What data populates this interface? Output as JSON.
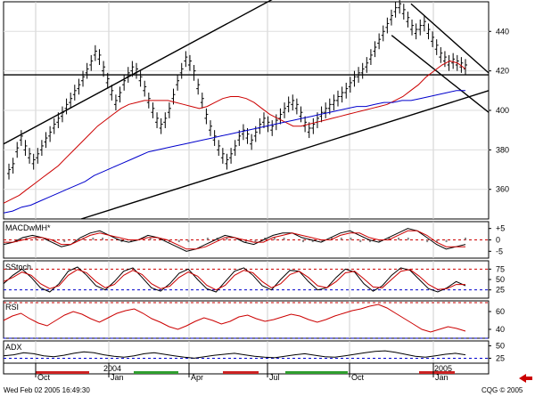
{
  "footer": {
    "datetime": "Wed Feb 02 2005 16:49:30",
    "copyright": "CQG © 2005"
  },
  "time_axis": {
    "month_labels": [
      "Oct",
      "Jan",
      "Apr",
      "Jul",
      "Oct",
      "Jan"
    ],
    "year_labels": [
      "2004",
      "2005"
    ]
  },
  "chart_data": [
    {
      "type": "line",
      "panel": "price",
      "ylim": [
        345,
        455
      ],
      "y_ticks": [
        {
          "value": 360,
          "label": "360"
        },
        {
          "value": 380,
          "label": "380"
        },
        {
          "value": 400,
          "label": "400"
        },
        {
          "value": 420,
          "label": "420"
        },
        {
          "value": 440,
          "label": "440"
        }
      ],
      "grid": true,
      "price_bars": [
        369,
        372,
        380,
        386,
        381,
        377,
        374,
        377,
        381,
        385,
        388,
        392,
        395,
        398,
        402,
        405,
        409,
        412,
        416,
        420,
        424,
        429,
        427,
        421,
        415,
        409,
        404,
        408,
        414,
        418,
        421,
        420,
        416,
        411,
        405,
        400,
        395,
        392,
        395,
        400,
        407,
        414,
        420,
        426,
        424,
        419,
        412,
        405,
        397,
        391,
        386,
        381,
        377,
        374,
        377,
        381,
        386,
        389,
        387,
        384,
        388,
        392,
        395,
        393,
        391,
        394,
        397,
        400,
        403,
        404,
        402,
        398,
        393,
        390,
        392,
        395,
        398,
        400,
        402,
        404,
        406,
        408,
        410,
        413,
        416,
        418,
        420,
        423,
        427,
        431,
        435,
        439,
        443,
        447,
        451,
        453,
        450,
        446,
        442,
        440,
        442,
        444,
        440,
        436,
        432,
        428,
        426,
        424,
        425,
        424,
        423,
        422
      ],
      "ma_fast": [
        353,
        355,
        357,
        360,
        363,
        366,
        369,
        372,
        376,
        380,
        384,
        388,
        392,
        395,
        398,
        401,
        403,
        404,
        405,
        405,
        405,
        405,
        404,
        403,
        402,
        401,
        402,
        404,
        406,
        407,
        407,
        406,
        404,
        401,
        398,
        396,
        394,
        392,
        392,
        393,
        394,
        395,
        396,
        397,
        398,
        399,
        400,
        401,
        402,
        403,
        405,
        407,
        410,
        413,
        417,
        420,
        423,
        425,
        424,
        421
      ],
      "ma_slow": [
        348,
        349,
        351,
        352,
        354,
        356,
        358,
        360,
        362,
        364,
        367,
        369,
        371,
        373,
        375,
        377,
        379,
        380,
        381,
        382,
        383,
        384,
        385,
        386,
        387,
        388,
        389,
        390,
        391,
        392,
        393,
        394,
        395,
        396,
        397,
        398,
        399,
        400,
        401,
        402,
        402,
        403,
        404,
        404,
        405,
        405,
        406,
        407,
        408,
        409,
        410,
        410
      ],
      "trendlines": [
        {
          "from": [
            0,
            418
          ],
          "to": [
            1,
            418
          ]
        },
        {
          "from": [
            0,
            383
          ],
          "to": [
            0.56,
            457
          ]
        },
        {
          "from": [
            0.16,
            345
          ],
          "to": [
            1,
            410
          ]
        },
        {
          "from": [
            0.84,
            454
          ],
          "to": [
            1,
            419
          ]
        },
        {
          "from": [
            0.8,
            438
          ],
          "to": [
            1,
            399
          ]
        }
      ]
    },
    {
      "type": "line",
      "panel": "macd",
      "name": "MACDwMH*",
      "ylim": [
        -8,
        8
      ],
      "y_ticks": [
        {
          "value": 5,
          "label": "+5"
        },
        {
          "value": 0,
          "label": "0"
        },
        {
          "value": -5,
          "label": "-5"
        }
      ],
      "guides": [
        {
          "value": 0,
          "color": "#cc0000",
          "dashed": true
        }
      ],
      "series": [
        {
          "color": "#000000",
          "values": [
            -2,
            -1,
            1,
            2,
            1,
            -1,
            -3,
            -2,
            1,
            3,
            4,
            2,
            0,
            -1,
            0,
            2,
            1,
            -1,
            -3,
            -5,
            -4,
            -2,
            0,
            2,
            1,
            -1,
            -2,
            0,
            2,
            3,
            3,
            1,
            0,
            -1,
            1,
            3,
            4,
            2,
            0,
            -1,
            1,
            3,
            5,
            4,
            1,
            -2,
            -4,
            -3,
            -2
          ]
        },
        {
          "color": "#cc0000",
          "values": [
            -1,
            -1,
            0,
            1,
            1,
            0,
            -2,
            -2,
            0,
            2,
            3,
            2,
            1,
            0,
            0,
            1,
            1,
            0,
            -2,
            -4,
            -4,
            -3,
            -1,
            1,
            1,
            0,
            -1,
            -1,
            1,
            2,
            3,
            2,
            1,
            0,
            0,
            2,
            3,
            3,
            1,
            0,
            0,
            2,
            4,
            4,
            2,
            -1,
            -3,
            -3,
            -3
          ]
        }
      ],
      "histogram": [
        0,
        -1,
        1,
        1,
        0,
        -1,
        -1,
        0,
        1,
        1,
        1,
        0,
        -1,
        -1,
        0,
        1,
        0,
        -1,
        -1,
        -1,
        0,
        1,
        1,
        1,
        0,
        -1,
        -1,
        1,
        1,
        1,
        0,
        -1,
        -1,
        -1,
        1,
        1,
        1,
        -1,
        -1,
        -1,
        1,
        1,
        1,
        0,
        -1,
        -1,
        -1,
        0,
        1
      ]
    },
    {
      "type": "line",
      "panel": "stoch",
      "name": "SStoch",
      "ylim": [
        5,
        95
      ],
      "y_ticks": [
        {
          "value": 75,
          "label": "75"
        },
        {
          "value": 50,
          "label": "50"
        },
        {
          "value": 25,
          "label": "25"
        }
      ],
      "guides": [
        {
          "value": 75,
          "color": "#cc0000",
          "dashed": true
        },
        {
          "value": 25,
          "color": "#0000cc",
          "dashed": true
        }
      ],
      "series": [
        {
          "color": "#000000",
          "values": [
            40,
            60,
            75,
            55,
            30,
            20,
            40,
            70,
            80,
            60,
            35,
            25,
            45,
            70,
            78,
            55,
            30,
            22,
            40,
            65,
            75,
            50,
            28,
            20,
            45,
            70,
            78,
            60,
            35,
            25,
            50,
            72,
            70,
            45,
            25,
            30,
            55,
            75,
            68,
            40,
            22,
            35,
            60,
            78,
            72,
            50,
            28,
            20,
            30,
            45,
            35
          ]
        },
        {
          "color": "#cc0000",
          "values": [
            45,
            55,
            68,
            60,
            40,
            28,
            35,
            60,
            74,
            66,
            45,
            30,
            38,
            60,
            72,
            62,
            40,
            28,
            34,
            55,
            68,
            58,
            36,
            25,
            36,
            60,
            72,
            66,
            45,
            30,
            40,
            62,
            70,
            55,
            35,
            30,
            45,
            66,
            70,
            52,
            32,
            30,
            50,
            70,
            74,
            58,
            38,
            26,
            28,
            38,
            38
          ]
        }
      ]
    },
    {
      "type": "line",
      "panel": "rsi",
      "name": "RSI",
      "ylim": [
        30,
        72
      ],
      "y_ticks": [
        {
          "value": 60,
          "label": "60"
        },
        {
          "value": 40,
          "label": "40"
        }
      ],
      "guides": [
        {
          "value": 70,
          "color": "#cc0000",
          "dashed": true
        },
        {
          "value": 30,
          "color": "#0000cc",
          "dashed": true
        }
      ],
      "series": [
        {
          "color": "#cc0000",
          "values": [
            50,
            55,
            58,
            52,
            47,
            44,
            50,
            56,
            60,
            57,
            52,
            48,
            53,
            58,
            61,
            63,
            58,
            52,
            48,
            43,
            40,
            44,
            49,
            53,
            50,
            46,
            49,
            54,
            56,
            52,
            49,
            51,
            54,
            57,
            55,
            51,
            48,
            51,
            55,
            58,
            61,
            63,
            66,
            68,
            64,
            58,
            52,
            46,
            40,
            37,
            40,
            43,
            41,
            38
          ]
        }
      ]
    },
    {
      "type": "line",
      "panel": "adx",
      "name": "ADX",
      "ylim": [
        15,
        60
      ],
      "y_ticks": [
        {
          "value": 50,
          "label": "50"
        },
        {
          "value": 25,
          "label": "25"
        }
      ],
      "guides": [
        {
          "value": 25,
          "color": "#0000cc",
          "dashed": true
        }
      ],
      "series": [
        {
          "color": "#000000",
          "values": [
            30,
            32,
            36,
            34,
            30,
            28,
            31,
            35,
            38,
            36,
            32,
            29,
            27,
            30,
            34,
            36,
            33,
            30,
            27,
            25,
            28,
            31,
            33,
            35,
            32,
            29,
            27,
            26,
            29,
            32,
            34,
            31,
            28,
            27,
            30,
            33,
            36,
            39,
            40,
            37,
            33,
            29,
            27,
            30,
            33,
            35,
            32
          ]
        }
      ]
    }
  ]
}
